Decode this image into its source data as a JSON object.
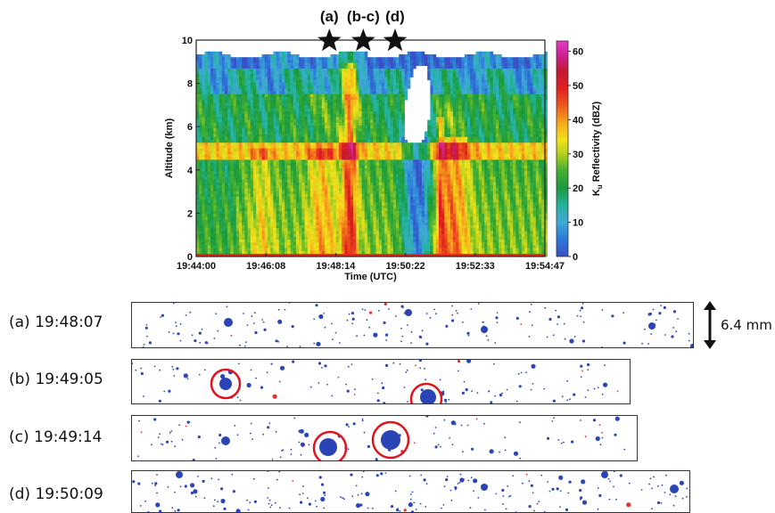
{
  "chart_data": {
    "type": "heatmap",
    "xlabel": "Time (UTC)",
    "ylabel": "Altitude (km)",
    "x_ticks": [
      "19:44:00",
      "19:46:08",
      "19:48:14",
      "19:50:22",
      "19:52:33",
      "19:54:47"
    ],
    "y_ticks": [
      "0",
      "2",
      "4",
      "6",
      "8",
      "10"
    ],
    "ylim": [
      0,
      10
    ],
    "colorbar": {
      "label_main": "K",
      "label_sub": "u",
      "label_rest": " Reflectivity (dBZ)",
      "ticks": [
        "0",
        "10",
        "20",
        "30",
        "40",
        "50",
        "60"
      ],
      "range": [
        0,
        63
      ]
    },
    "markers": [
      {
        "label": "(a)",
        "time": "19:48:07"
      },
      {
        "label": "(b-c)",
        "time": "19:49:10"
      },
      {
        "label": "(d)",
        "time": "19:50:09"
      }
    ],
    "marker_symbol": "★"
  },
  "strips": [
    {
      "label": "(a) 19:48:07"
    },
    {
      "label": "(b) 19:49:05"
    },
    {
      "label": "(c) 19:49:14"
    },
    {
      "label": "(d) 19:50:09"
    }
  ],
  "scale_bar": {
    "label": "6.4 mm"
  }
}
